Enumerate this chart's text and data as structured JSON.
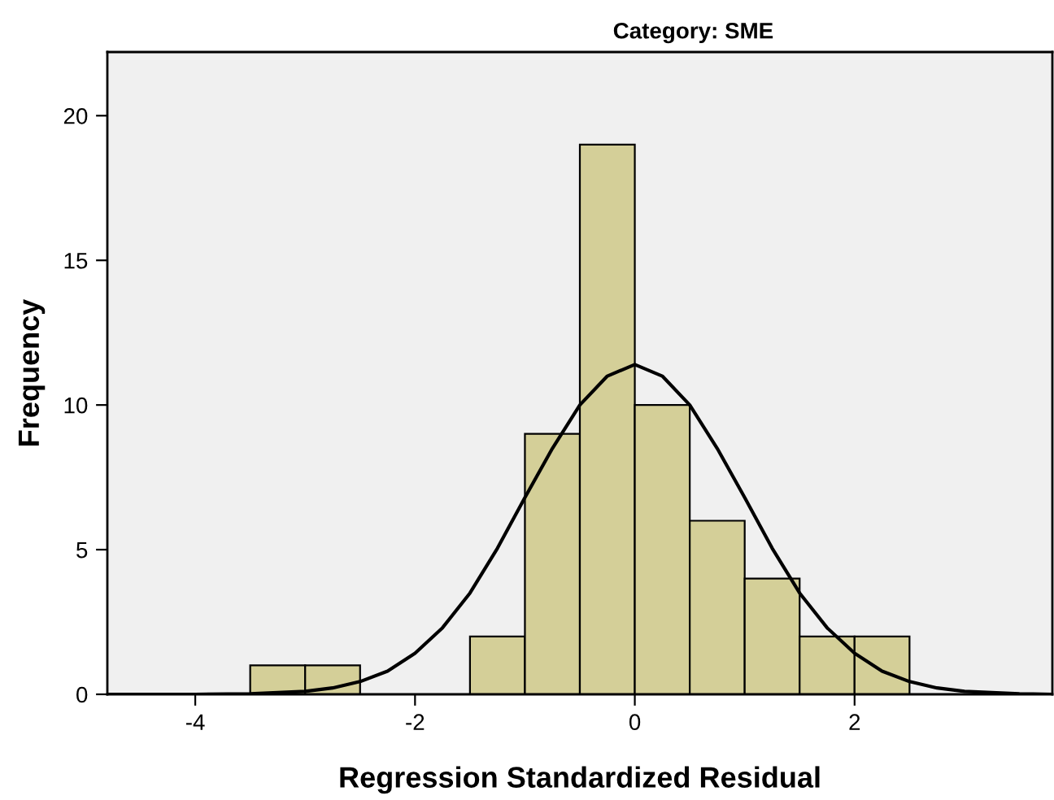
{
  "chart_data": {
    "type": "histogram",
    "title": "Category: SME",
    "xlabel": "Regression Standardized Residual",
    "ylabel": "Frequency",
    "bins": [
      -3.5,
      -3,
      -2.5,
      -2,
      -1.5,
      -1,
      -0.5,
      0,
      0.5,
      1,
      1.5,
      2,
      2.5
    ],
    "values": [
      1,
      1,
      0,
      0,
      2,
      9,
      19,
      10,
      6,
      4,
      2,
      2
    ],
    "color": "#d4cf98",
    "series": [
      {
        "type": "line",
        "color": "#000000",
        "x": [
          -4.8,
          -4,
          -3.5,
          -3,
          -2.75,
          -2.5,
          -2.25,
          -2,
          -1.75,
          -1.5,
          -1.25,
          -1,
          -0.75,
          -0.5,
          -0.25,
          0,
          0.25,
          0.5,
          0.75,
          1,
          1.25,
          1.5,
          1.75,
          2,
          2.25,
          2.5,
          2.75,
          3,
          3.5,
          3.8
        ],
        "values": [
          0,
          0,
          0.02,
          0.1,
          0.22,
          0.44,
          0.8,
          1.42,
          2.3,
          3.5,
          5.05,
          6.8,
          8.5,
          10,
          11,
          11.4,
          11,
          10,
          8.5,
          6.8,
          5.05,
          3.5,
          2.3,
          1.42,
          0.8,
          0.44,
          0.22,
          0.1,
          0.02,
          0
        ]
      }
    ],
    "xlim": [
      -4.8,
      3.8
    ],
    "ylim": [
      0,
      22.2
    ],
    "xticks": [
      -4,
      -2,
      0,
      2
    ],
    "yticks": [
      0,
      5,
      10,
      15,
      20
    ],
    "grid": false,
    "legend": false
  }
}
